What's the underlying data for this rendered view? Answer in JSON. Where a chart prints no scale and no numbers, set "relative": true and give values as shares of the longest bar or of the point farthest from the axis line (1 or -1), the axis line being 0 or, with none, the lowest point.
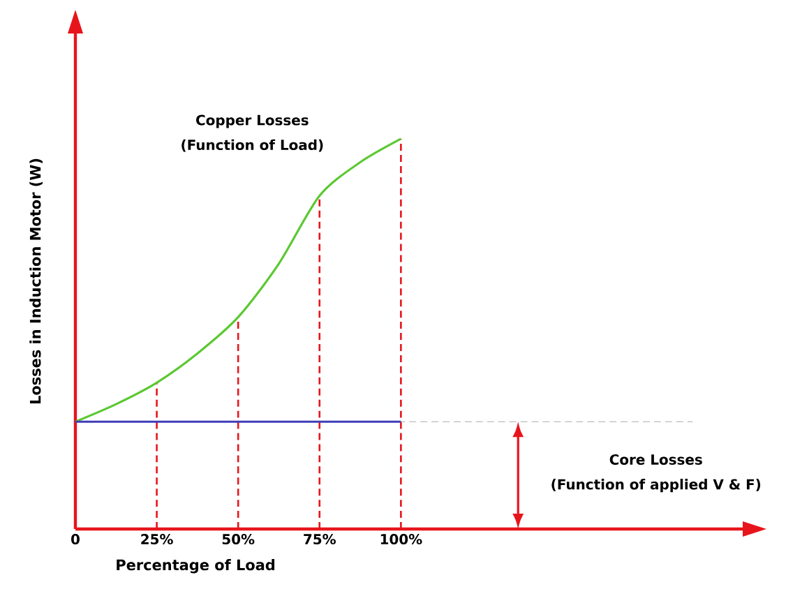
{
  "chart_data": {
    "type": "line",
    "relative": true,
    "xlabel": "Percentage of Load",
    "ylabel": "Losses in Induction Motor (W)",
    "xlim": [
      0,
      205
    ],
    "xticks": [
      0,
      {
        "value": 25,
        "label": "25%"
      },
      {
        "value": 50,
        "label": "50%"
      },
      {
        "value": 75,
        "label": "75%"
      },
      {
        "value": 100,
        "label": "100%"
      }
    ],
    "series": [
      {
        "color": "#5cc832",
        "x": [
          0,
          12.5,
          25,
          37.5,
          50,
          62.5,
          75,
          87.5,
          100
        ],
        "values": [
          0.275,
          0.32,
          0.375,
          0.45,
          0.543,
          0.68,
          0.854,
          0.94,
          1
        ]
      },
      {
        "color": "#3d3db8",
        "x": [
          0,
          100
        ],
        "values": [
          0.275,
          0.275
        ]
      }
    ],
    "ref_lines": [
      {
        "axis": "x",
        "value": 25,
        "color": "#e8141b",
        "line_style": "dashed"
      },
      {
        "axis": "x",
        "value": 50,
        "color": "#e8141b",
        "line_style": "dashed"
      },
      {
        "axis": "x",
        "value": 75,
        "color": "#e8141b",
        "line_style": "dashed"
      },
      {
        "axis": "x",
        "value": 100,
        "color": "#e8141b",
        "line_style": "dashed"
      },
      {
        "axis": "y",
        "value": 0.275,
        "color": "#aaaaaa",
        "line_style": "dashed"
      }
    ],
    "annotations": [
      "Copper Losses",
      "(Function of Load)",
      "Core Losses",
      "(Function of applied V & F)"
    ],
    "grid": false,
    "marker": "none",
    "line_style": "solid"
  }
}
